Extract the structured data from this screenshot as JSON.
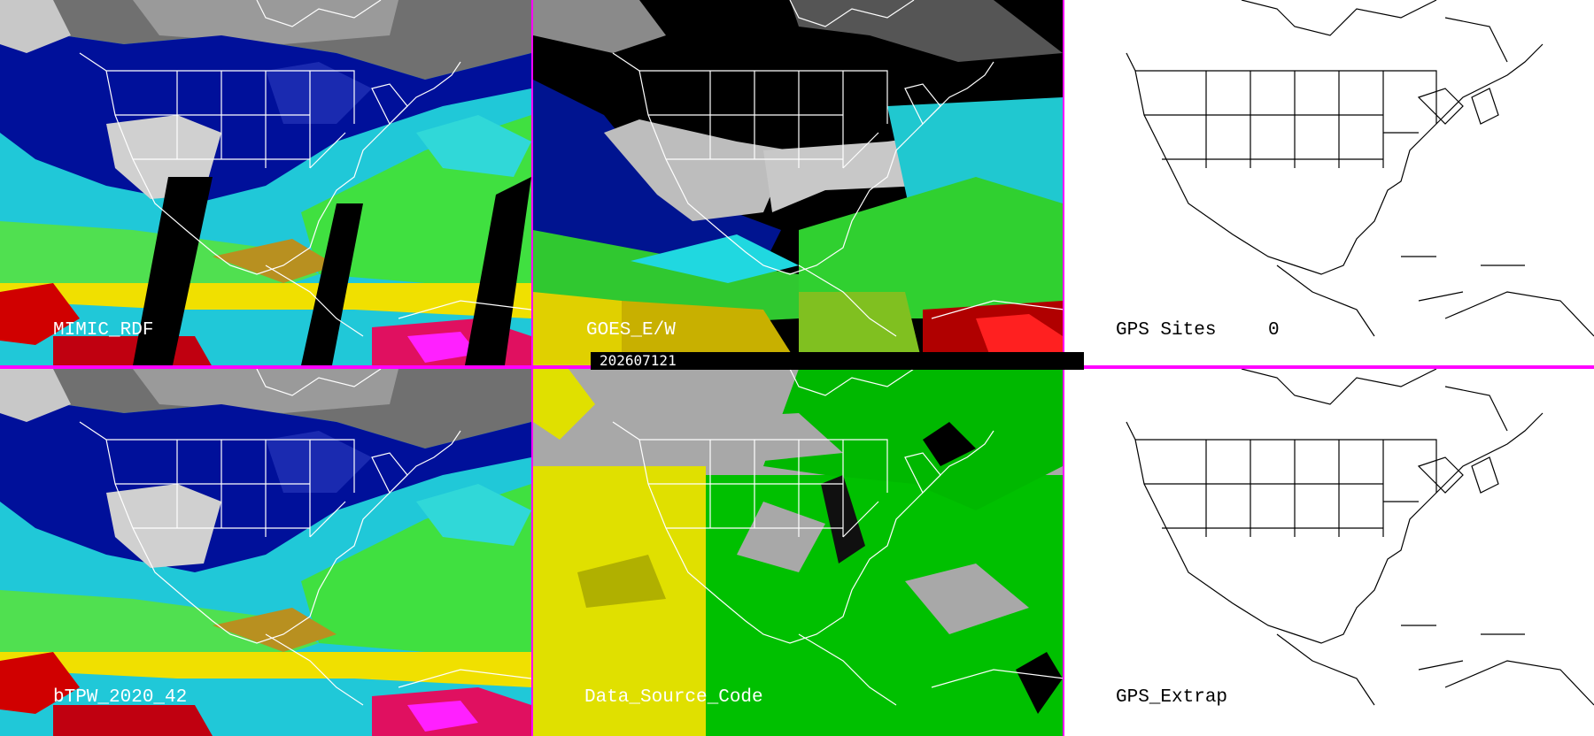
{
  "panels": [
    {
      "id": "mimic",
      "label": "MIMIC_RDF",
      "style": "tpw"
    },
    {
      "id": "goes",
      "label": "GOES_E/W",
      "style": "goes"
    },
    {
      "id": "gps-sites",
      "label": "GPS Sites",
      "count": "0",
      "style": "blank"
    },
    {
      "id": "btpw",
      "label": "bTPW_2020_42",
      "style": "tpw"
    },
    {
      "id": "source",
      "label": "Data_Source_Code",
      "style": "source"
    },
    {
      "id": "gps-extrap",
      "label": "GPS_Extrap",
      "style": "blank"
    }
  ],
  "timestamp": "202607121",
  "colors": {
    "divider": "#ff00ff",
    "tpw_deep_blue": "#00109a",
    "tpw_cyan": "#20d8e0",
    "tpw_green": "#40e040",
    "tpw_yellow": "#f0e000",
    "tpw_red": "#d00000",
    "source_yellow": "#e0e000",
    "source_green": "#00c000",
    "source_gray": "#a8a8a8"
  }
}
